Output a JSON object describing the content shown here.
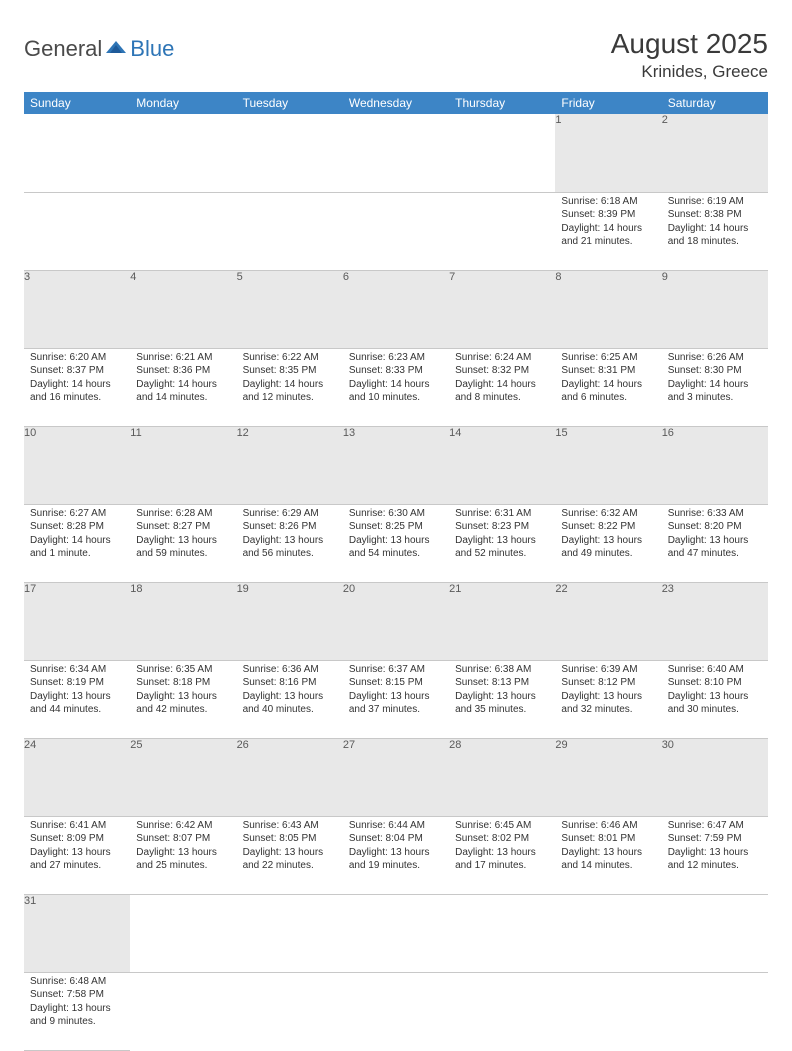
{
  "logo": {
    "text1": "General",
    "text2": "Blue"
  },
  "title": "August 2025",
  "location": "Krinides, Greece",
  "colors": {
    "header_bg": "#3d85c6",
    "header_fg": "#ffffff",
    "daynum_bg": "#e8e8e8",
    "text": "#333333",
    "page_bg": "#ffffff",
    "logo_blue": "#2e75b6"
  },
  "weekdays": [
    "Sunday",
    "Monday",
    "Tuesday",
    "Wednesday",
    "Thursday",
    "Friday",
    "Saturday"
  ],
  "weeks": [
    [
      null,
      null,
      null,
      null,
      null,
      {
        "n": "1",
        "sr": "Sunrise: 6:18 AM",
        "ss": "Sunset: 8:39 PM",
        "d1": "Daylight: 14 hours",
        "d2": "and 21 minutes."
      },
      {
        "n": "2",
        "sr": "Sunrise: 6:19 AM",
        "ss": "Sunset: 8:38 PM",
        "d1": "Daylight: 14 hours",
        "d2": "and 18 minutes."
      }
    ],
    [
      {
        "n": "3",
        "sr": "Sunrise: 6:20 AM",
        "ss": "Sunset: 8:37 PM",
        "d1": "Daylight: 14 hours",
        "d2": "and 16 minutes."
      },
      {
        "n": "4",
        "sr": "Sunrise: 6:21 AM",
        "ss": "Sunset: 8:36 PM",
        "d1": "Daylight: 14 hours",
        "d2": "and 14 minutes."
      },
      {
        "n": "5",
        "sr": "Sunrise: 6:22 AM",
        "ss": "Sunset: 8:35 PM",
        "d1": "Daylight: 14 hours",
        "d2": "and 12 minutes."
      },
      {
        "n": "6",
        "sr": "Sunrise: 6:23 AM",
        "ss": "Sunset: 8:33 PM",
        "d1": "Daylight: 14 hours",
        "d2": "and 10 minutes."
      },
      {
        "n": "7",
        "sr": "Sunrise: 6:24 AM",
        "ss": "Sunset: 8:32 PM",
        "d1": "Daylight: 14 hours",
        "d2": "and 8 minutes."
      },
      {
        "n": "8",
        "sr": "Sunrise: 6:25 AM",
        "ss": "Sunset: 8:31 PM",
        "d1": "Daylight: 14 hours",
        "d2": "and 6 minutes."
      },
      {
        "n": "9",
        "sr": "Sunrise: 6:26 AM",
        "ss": "Sunset: 8:30 PM",
        "d1": "Daylight: 14 hours",
        "d2": "and 3 minutes."
      }
    ],
    [
      {
        "n": "10",
        "sr": "Sunrise: 6:27 AM",
        "ss": "Sunset: 8:28 PM",
        "d1": "Daylight: 14 hours",
        "d2": "and 1 minute."
      },
      {
        "n": "11",
        "sr": "Sunrise: 6:28 AM",
        "ss": "Sunset: 8:27 PM",
        "d1": "Daylight: 13 hours",
        "d2": "and 59 minutes."
      },
      {
        "n": "12",
        "sr": "Sunrise: 6:29 AM",
        "ss": "Sunset: 8:26 PM",
        "d1": "Daylight: 13 hours",
        "d2": "and 56 minutes."
      },
      {
        "n": "13",
        "sr": "Sunrise: 6:30 AM",
        "ss": "Sunset: 8:25 PM",
        "d1": "Daylight: 13 hours",
        "d2": "and 54 minutes."
      },
      {
        "n": "14",
        "sr": "Sunrise: 6:31 AM",
        "ss": "Sunset: 8:23 PM",
        "d1": "Daylight: 13 hours",
        "d2": "and 52 minutes."
      },
      {
        "n": "15",
        "sr": "Sunrise: 6:32 AM",
        "ss": "Sunset: 8:22 PM",
        "d1": "Daylight: 13 hours",
        "d2": "and 49 minutes."
      },
      {
        "n": "16",
        "sr": "Sunrise: 6:33 AM",
        "ss": "Sunset: 8:20 PM",
        "d1": "Daylight: 13 hours",
        "d2": "and 47 minutes."
      }
    ],
    [
      {
        "n": "17",
        "sr": "Sunrise: 6:34 AM",
        "ss": "Sunset: 8:19 PM",
        "d1": "Daylight: 13 hours",
        "d2": "and 44 minutes."
      },
      {
        "n": "18",
        "sr": "Sunrise: 6:35 AM",
        "ss": "Sunset: 8:18 PM",
        "d1": "Daylight: 13 hours",
        "d2": "and 42 minutes."
      },
      {
        "n": "19",
        "sr": "Sunrise: 6:36 AM",
        "ss": "Sunset: 8:16 PM",
        "d1": "Daylight: 13 hours",
        "d2": "and 40 minutes."
      },
      {
        "n": "20",
        "sr": "Sunrise: 6:37 AM",
        "ss": "Sunset: 8:15 PM",
        "d1": "Daylight: 13 hours",
        "d2": "and 37 minutes."
      },
      {
        "n": "21",
        "sr": "Sunrise: 6:38 AM",
        "ss": "Sunset: 8:13 PM",
        "d1": "Daylight: 13 hours",
        "d2": "and 35 minutes."
      },
      {
        "n": "22",
        "sr": "Sunrise: 6:39 AM",
        "ss": "Sunset: 8:12 PM",
        "d1": "Daylight: 13 hours",
        "d2": "and 32 minutes."
      },
      {
        "n": "23",
        "sr": "Sunrise: 6:40 AM",
        "ss": "Sunset: 8:10 PM",
        "d1": "Daylight: 13 hours",
        "d2": "and 30 minutes."
      }
    ],
    [
      {
        "n": "24",
        "sr": "Sunrise: 6:41 AM",
        "ss": "Sunset: 8:09 PM",
        "d1": "Daylight: 13 hours",
        "d2": "and 27 minutes."
      },
      {
        "n": "25",
        "sr": "Sunrise: 6:42 AM",
        "ss": "Sunset: 8:07 PM",
        "d1": "Daylight: 13 hours",
        "d2": "and 25 minutes."
      },
      {
        "n": "26",
        "sr": "Sunrise: 6:43 AM",
        "ss": "Sunset: 8:05 PM",
        "d1": "Daylight: 13 hours",
        "d2": "and 22 minutes."
      },
      {
        "n": "27",
        "sr": "Sunrise: 6:44 AM",
        "ss": "Sunset: 8:04 PM",
        "d1": "Daylight: 13 hours",
        "d2": "and 19 minutes."
      },
      {
        "n": "28",
        "sr": "Sunrise: 6:45 AM",
        "ss": "Sunset: 8:02 PM",
        "d1": "Daylight: 13 hours",
        "d2": "and 17 minutes."
      },
      {
        "n": "29",
        "sr": "Sunrise: 6:46 AM",
        "ss": "Sunset: 8:01 PM",
        "d1": "Daylight: 13 hours",
        "d2": "and 14 minutes."
      },
      {
        "n": "30",
        "sr": "Sunrise: 6:47 AM",
        "ss": "Sunset: 7:59 PM",
        "d1": "Daylight: 13 hours",
        "d2": "and 12 minutes."
      }
    ],
    [
      {
        "n": "31",
        "sr": "Sunrise: 6:48 AM",
        "ss": "Sunset: 7:58 PM",
        "d1": "Daylight: 13 hours",
        "d2": "and 9 minutes."
      },
      null,
      null,
      null,
      null,
      null,
      null
    ]
  ]
}
